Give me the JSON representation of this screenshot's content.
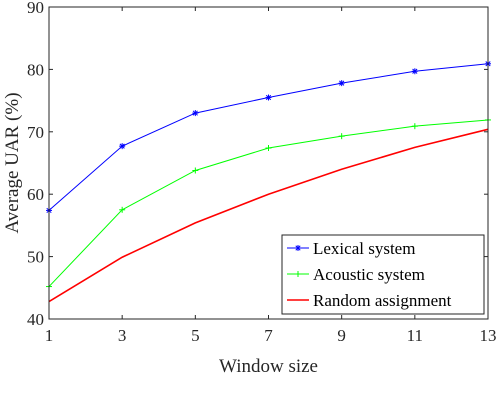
{
  "chart_data": {
    "type": "line",
    "xlabel": "Window size",
    "ylabel": "Average UAR (%)",
    "xlim": [
      1,
      13
    ],
    "ylim": [
      40,
      90
    ],
    "xticks": [
      1,
      3,
      5,
      7,
      9,
      11,
      13
    ],
    "yticks": [
      40,
      50,
      60,
      70,
      80,
      90
    ],
    "grid": false,
    "legend_position": "bottom-right",
    "series": [
      {
        "name": "Lexical system",
        "color": "#0000ff",
        "marker": "asterisk",
        "x": [
          1,
          3,
          5,
          7,
          9,
          11,
          13
        ],
        "y": [
          57.4,
          67.7,
          73.0,
          75.5,
          77.8,
          79.7,
          80.9
        ]
      },
      {
        "name": "Acoustic system",
        "color": "#00ff00",
        "marker": "plus",
        "x": [
          1,
          3,
          5,
          7,
          9,
          11,
          13
        ],
        "y": [
          45.2,
          57.5,
          63.8,
          67.4,
          69.3,
          70.9,
          71.9
        ]
      },
      {
        "name": "Random assignment",
        "color": "#ff0000",
        "marker": "none",
        "x": [
          1,
          3,
          5,
          7,
          9,
          11,
          13
        ],
        "y": [
          42.8,
          49.9,
          55.4,
          60.0,
          64.0,
          67.5,
          70.4
        ]
      }
    ]
  }
}
